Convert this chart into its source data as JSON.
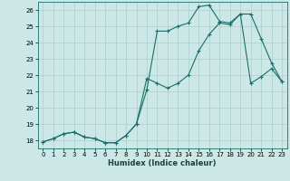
{
  "xlabel": "Humidex (Indice chaleur)",
  "background_color": "#cce8e6",
  "grid_color": "#aacfcc",
  "line_color": "#1a6e6a",
  "xlim": [
    -0.5,
    23.5
  ],
  "ylim": [
    17.5,
    26.5
  ],
  "xticks": [
    0,
    1,
    2,
    3,
    4,
    5,
    6,
    7,
    8,
    9,
    10,
    11,
    12,
    13,
    14,
    15,
    16,
    17,
    18,
    19,
    20,
    21,
    22,
    23
  ],
  "yticks": [
    18,
    19,
    20,
    21,
    22,
    23,
    24,
    25,
    26
  ],
  "line1_x": [
    0,
    1,
    2,
    3,
    4,
    5,
    6,
    7,
    8,
    9,
    10,
    11,
    12,
    13,
    14,
    15,
    16,
    17,
    18,
    19,
    20,
    21,
    22,
    23
  ],
  "line1_y": [
    17.9,
    18.1,
    18.4,
    18.5,
    18.2,
    18.1,
    17.85,
    17.85,
    18.3,
    19.0,
    21.1,
    24.7,
    24.7,
    25.0,
    25.2,
    26.2,
    26.3,
    25.3,
    25.2,
    25.75,
    25.75,
    24.25,
    22.75,
    21.6
  ],
  "line2_x": [
    0,
    1,
    2,
    3,
    4,
    5,
    6,
    7,
    8,
    9,
    10,
    11,
    12,
    13,
    14,
    15,
    16,
    17,
    18,
    19,
    20,
    21,
    22,
    23
  ],
  "line2_y": [
    17.9,
    18.1,
    18.4,
    18.5,
    18.2,
    18.1,
    17.85,
    17.85,
    18.3,
    19.0,
    21.8,
    21.5,
    21.2,
    21.5,
    22.0,
    23.5,
    24.5,
    25.2,
    25.1,
    25.75,
    21.5,
    21.9,
    22.4,
    21.6
  ]
}
